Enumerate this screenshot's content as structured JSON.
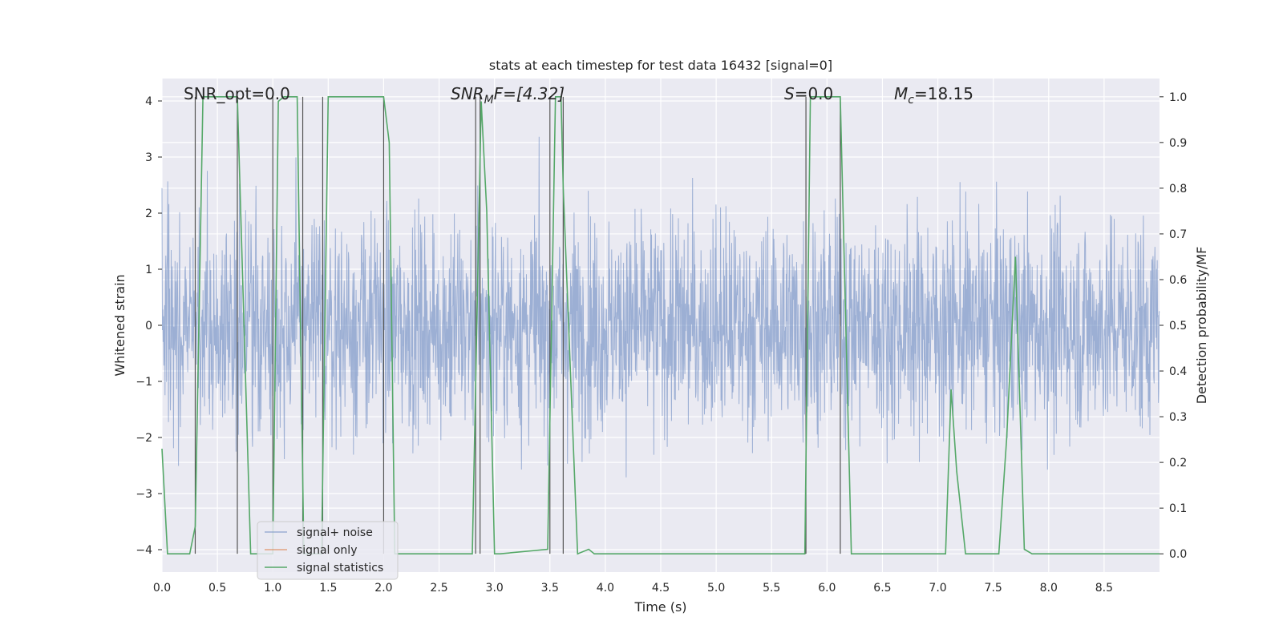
{
  "chart_data": {
    "type": "line",
    "title": "stats at each timestep for test data 16432 [signal=0]",
    "xlabel": "Time (s)",
    "ylabel": "Whitened strain",
    "ylabel_right": "Detection probability/MF",
    "xlim": [
      0,
      9.0
    ],
    "ylim": [
      -4.4,
      4.4
    ],
    "ylim_right": [
      -0.04,
      1.04
    ],
    "x_ticks": [
      "0.0",
      "0.5",
      "1.0",
      "1.5",
      "2.0",
      "2.5",
      "3.0",
      "3.5",
      "4.0",
      "4.5",
      "5.0",
      "5.5",
      "6.0",
      "6.5",
      "7.0",
      "7.5",
      "8.0",
      "8.5"
    ],
    "y_ticks": [
      "4",
      "3",
      "2",
      "1",
      "0",
      "−1",
      "−2",
      "−3",
      "−4"
    ],
    "y_ticks_right": [
      "1.0",
      "0.9",
      "0.8",
      "0.7",
      "0.6",
      "0.5",
      "0.4",
      "0.3",
      "0.2",
      "0.1",
      "0.0"
    ],
    "grid": true,
    "legend_position": "lower-left",
    "annotations": {
      "snr_opt": "SNR_opt=0.0",
      "snr_mf_sym": "SNR",
      "snr_mf_sub": "M",
      "snr_mf_tail": "F=[4.32]",
      "s_sym": "S",
      "s_tail": "=0.0",
      "mc_sym": "M",
      "mc_sub": "c",
      "mc_tail": "=18.15"
    },
    "series": [
      {
        "name": "signal+ noise",
        "color": "#7b96c8",
        "description_values": "white noise, amplitude ~1.5, peaks to ~3.9"
      },
      {
        "name": "signal only",
        "color": "#dd8452",
        "values": []
      },
      {
        "name": "signal statistics",
        "color": "#55a868",
        "axis": "right",
        "x": [
          0.0,
          0.05,
          0.25,
          0.3,
          0.37,
          0.65,
          0.68,
          0.8,
          1.0,
          1.05,
          1.1,
          1.22,
          1.28,
          1.3,
          1.44,
          1.5,
          2.0,
          2.05,
          2.1,
          2.15,
          2.8,
          2.88,
          2.93,
          3.0,
          3.05,
          3.48,
          3.55,
          3.58,
          3.6,
          3.62,
          3.75,
          3.85,
          3.9,
          3.95,
          4.5,
          5.8,
          5.85,
          6.12,
          6.22,
          6.28,
          7.07,
          7.12,
          7.17,
          7.25,
          7.35,
          7.45,
          7.55,
          7.62,
          7.7,
          7.78,
          7.85,
          9.0
        ],
        "y": [
          0.23,
          0.0,
          0.0,
          0.06,
          1.0,
          1.0,
          1.0,
          0.0,
          0.0,
          0.99,
          1.0,
          1.0,
          0.0,
          0.0,
          0.0,
          1.0,
          1.0,
          0.9,
          0.0,
          0.0,
          0.0,
          0.99,
          0.75,
          0.0,
          0.0,
          0.01,
          1.0,
          1.0,
          1.0,
          0.8,
          0.0,
          0.01,
          0.0,
          0.0,
          0.0,
          0.0,
          1.0,
          1.0,
          0.0,
          0.0,
          0.0,
          0.36,
          0.18,
          0.0,
          0.0,
          0.0,
          0.0,
          0.25,
          0.65,
          0.01,
          0.0,
          0.0
        ]
      }
    ],
    "vertical_markers_x": [
      0.3,
      0.68,
      1.0,
      1.27,
      1.45,
      2.0,
      2.83,
      2.87,
      3.5,
      3.62,
      5.81,
      6.12
    ]
  }
}
